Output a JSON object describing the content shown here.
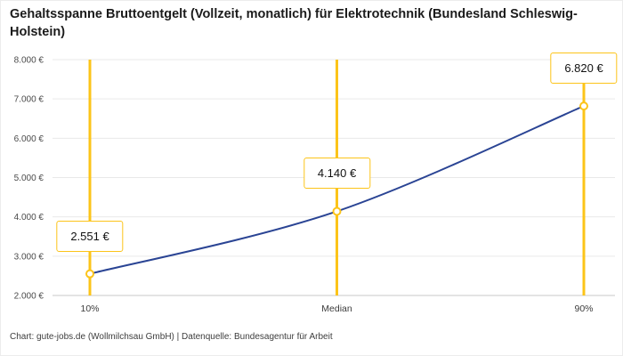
{
  "header": {
    "title": "Gehaltsspanne Bruttoentgelt (Vollzeit, monatlich) für Elektrotechnik (Bundesland Schleswig-Holstein)"
  },
  "footer": {
    "credit": "Chart: gute-jobs.de (Wollmilchsau GmbH) | Datenquelle: Bundesagentur für Arbeit"
  },
  "chart_data": {
    "type": "line",
    "title": "Gehaltsspanne Bruttoentgelt (Vollzeit, monatlich) für Elektrotechnik (Bundesland Schleswig-Holstein)",
    "categories": [
      "10%",
      "Median",
      "90%"
    ],
    "values": [
      2551,
      4140,
      6820
    ],
    "value_labels": [
      "2.551 €",
      "4.140 €",
      "6.820 €"
    ],
    "ylim": [
      2000,
      8000
    ],
    "ytick_step": 1000,
    "ytick_labels": [
      "2.000 €",
      "3.000 €",
      "4.000 €",
      "5.000 €",
      "6.000 €",
      "7.000 €",
      "8.000 €"
    ],
    "xlabel": "",
    "ylabel": "",
    "grid": true,
    "legend": "none",
    "colors": {
      "line": "#2a4494",
      "highlight": "#fcc419",
      "grid": "#e9e9e9",
      "axis": "#c9c9c9",
      "tick_text": "#4a4a4a",
      "marker_fill": "#ffffff"
    }
  }
}
